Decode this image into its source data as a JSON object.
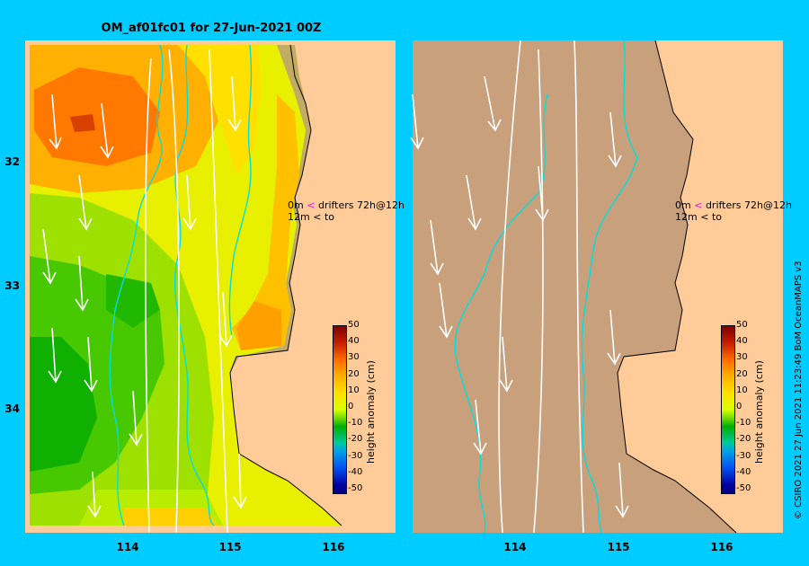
{
  "title": "OM_af01fc01 for 27-Jun-2021 00Z",
  "y_axis_labels": [
    "32",
    "33",
    "34"
  ],
  "x_axis_labels": [
    "114",
    "115",
    "116"
  ],
  "legend": {
    "row1_depth": "0m",
    "row1_text": "drifters 72h@12h",
    "row2_depth": "12m",
    "row2_text": "to",
    "arrow_glyph": "<"
  },
  "colorbar": {
    "title": "height anomaly (cm)",
    "ticks": [
      "50",
      "40",
      "30",
      "20",
      "10",
      "0",
      "-10",
      "-20",
      "-30",
      "-40",
      "-50"
    ]
  },
  "credit": "© CSIRO 2021   27 Jun 2021 11:23:49 BoM OceanMAPS v3",
  "colors": {
    "background": "#00ccff",
    "land": "#ffcc99",
    "masked_ocean": "#c8a07c",
    "current_arrows": "#ffffff",
    "isobath": "#00e0e0",
    "drifter_arrow": "#ff00ff"
  }
}
